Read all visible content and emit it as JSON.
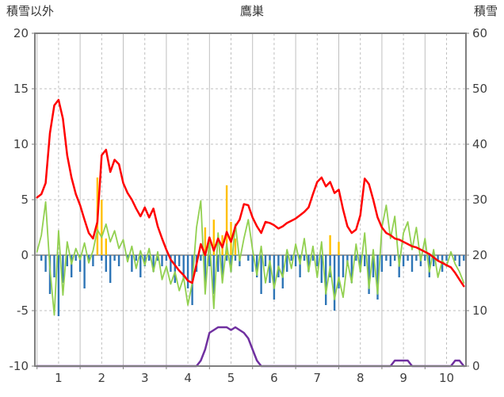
{
  "header": {
    "left_label": "積雪以外",
    "title": "鷹巣",
    "right_label": "積雪"
  },
  "chart_data": {
    "type": "line",
    "title": "鷹巣",
    "left_axis": {
      "label": "積雪以外",
      "min": -10,
      "max": 20,
      "ticks": [
        20,
        15,
        10,
        5,
        0,
        -5,
        -10
      ]
    },
    "right_axis": {
      "label": "積雪",
      "min": 0,
      "max": 60,
      "ticks": [
        60,
        50,
        40,
        30,
        20,
        10,
        0
      ]
    },
    "x_axis": {
      "min": 0.45,
      "max": 10.45,
      "ticks": [
        1,
        2,
        3,
        4,
        5,
        6,
        7,
        8,
        9,
        10
      ]
    },
    "x": {
      "start": 0.5,
      "step": 0.1,
      "count": 100
    },
    "grid": {
      "color": "#BFBFBF",
      "zero_color": "#808080",
      "v_solid": [
        0.5,
        1.5,
        2.5,
        3.5,
        4.5,
        5.5,
        6.5,
        7.5,
        8.5,
        9.5
      ],
      "v_dashed": [
        1,
        2,
        3,
        4,
        5,
        6,
        7,
        8,
        9,
        10
      ],
      "h_dashed": [
        15,
        10,
        5,
        -5
      ]
    },
    "border_color": "#7F7F7F",
    "series": [
      {
        "name": "blue-bars",
        "kind": "bar",
        "axis": "left",
        "color": "#2E75B6",
        "values": [
          0,
          -0.5,
          -1.5,
          -3.5,
          -2,
          -5.5,
          -2.5,
          -1,
          -2,
          -0.5,
          -1.5,
          -3,
          -0.5,
          -1,
          0,
          -0.5,
          -1.5,
          -2.5,
          -0.5,
          -1,
          0,
          -0.5,
          -1.5,
          -0.5,
          -2,
          -1,
          -0.5,
          -1.5,
          -0.5,
          -1,
          -0.5,
          -1.5,
          -2.5,
          -1,
          -2,
          -3,
          -4.5,
          -1.5,
          -0.5,
          -2.5,
          -1,
          -3.5,
          -1.5,
          -2,
          -0.5,
          -1.5,
          -0.5,
          -1,
          0,
          -0.5,
          -1.5,
          -2,
          -3.5,
          -1,
          -2.5,
          -4,
          -2,
          -3,
          -1.5,
          -0.5,
          -1,
          -2,
          -0.5,
          -1.5,
          -0.5,
          -1,
          -2.5,
          -4.5,
          -2,
          -5,
          -3,
          -2,
          -1,
          -2.5,
          -0.5,
          -1.5,
          -1,
          -3.5,
          -2,
          -4,
          -1.5,
          -0.5,
          -1,
          -0.5,
          -2,
          -1,
          -0.5,
          -1.5,
          -0.5,
          -1,
          -0.5,
          -2,
          -1,
          -0.5,
          -1.5,
          -0.5,
          0,
          -0.5,
          -1,
          -0.5
        ]
      },
      {
        "name": "orange-bars",
        "kind": "bar",
        "axis": "left",
        "color": "#FFC000",
        "values": [
          0,
          0,
          0,
          0,
          0,
          0,
          0,
          0,
          0,
          0,
          0,
          0,
          0,
          0,
          7,
          5,
          1.5,
          0,
          0,
          0,
          0,
          0,
          0,
          0,
          0,
          0,
          0,
          0,
          0,
          0,
          0,
          0,
          0,
          0,
          0,
          0,
          0,
          0,
          0,
          2.5,
          0,
          3.2,
          0,
          1.8,
          6.3,
          3,
          1.5,
          0,
          0,
          0,
          0,
          0,
          0,
          0,
          0,
          0,
          0,
          0,
          0,
          0,
          0,
          0,
          0,
          0,
          0,
          0,
          0,
          0,
          1.8,
          0,
          1.2,
          0,
          0,
          0,
          0,
          0,
          0,
          0,
          0,
          0,
          0,
          0,
          0,
          0,
          0,
          0,
          0,
          0,
          0,
          0,
          0,
          0,
          0,
          0,
          0,
          0,
          0,
          0,
          0,
          0
        ]
      },
      {
        "name": "green-line",
        "kind": "line",
        "axis": "left",
        "color": "#92D050",
        "width": 1.8,
        "values": [
          0.3,
          1.8,
          4.8,
          -1.2,
          -5.4,
          2.2,
          -3.6,
          1.2,
          -0.8,
          0.6,
          -0.4,
          1.1,
          -0.7,
          0.4,
          2.3,
          1.6,
          2.8,
          1.2,
          2.2,
          0.6,
          1.4,
          -0.6,
          0.8,
          -1.2,
          0.4,
          -0.9,
          0.6,
          -1.5,
          0.3,
          -2.2,
          -1,
          -2.6,
          -1.5,
          -3.2,
          -2,
          -4.5,
          -2.5,
          2.5,
          4.9,
          -3.5,
          1.5,
          -4.8,
          2,
          -2.5,
          1,
          -1.5,
          2.8,
          -0.5,
          1.5,
          3.2,
          0.5,
          -1.8,
          0.8,
          -2.5,
          -0.5,
          -3,
          -1,
          -2,
          0.5,
          -1.2,
          1,
          -0.8,
          1.5,
          -1.5,
          0.8,
          -2,
          1.2,
          -3.5,
          -1,
          -4,
          -2,
          -3.8,
          -0.5,
          -2.5,
          1,
          -1.5,
          2,
          -3,
          0.5,
          -3.5,
          2.5,
          4.5,
          1.5,
          3.5,
          -1,
          2,
          3,
          0.5,
          2.5,
          -0.5,
          1.5,
          -1.5,
          0.5,
          -2,
          -0.5,
          -1,
          0.3,
          -0.8,
          -1.5,
          -2.5
        ]
      },
      {
        "name": "red-line",
        "kind": "line",
        "axis": "left",
        "color": "#FF0000",
        "width": 2.5,
        "values": [
          5.2,
          5.5,
          6.5,
          11,
          13.5,
          14,
          12.3,
          9,
          7,
          5.5,
          4.5,
          3.2,
          2,
          1.5,
          3,
          9,
          9.5,
          7.5,
          8.6,
          8.2,
          6.5,
          5.6,
          5,
          4.2,
          3.5,
          4.3,
          3.4,
          4.2,
          2.6,
          1.5,
          0.5,
          -0.4,
          -0.9,
          -1.4,
          -1.8,
          -2.3,
          -2.5,
          -0.8,
          1,
          0,
          1.6,
          0.4,
          1.5,
          0.7,
          2.1,
          1.2,
          2.6,
          3.2,
          4.6,
          4.5,
          3.4,
          2.6,
          2,
          3,
          2.9,
          2.7,
          2.4,
          2.6,
          2.9,
          3.1,
          3.3,
          3.6,
          3.9,
          4.3,
          5.5,
          6.6,
          7,
          6.2,
          6.6,
          5.6,
          5.9,
          4.1,
          2.6,
          2,
          2.3,
          3.6,
          6.9,
          6.4,
          5,
          3.4,
          2.5,
          2,
          1.8,
          1.5,
          1.4,
          1.2,
          1,
          0.8,
          0.7,
          0.5,
          0.3,
          0.1,
          -0.2,
          -0.5,
          -0.7,
          -0.9,
          -1.1,
          -1.6,
          -2.2,
          -2.8
        ]
      },
      {
        "name": "purple-line",
        "kind": "line",
        "axis": "right",
        "color": "#7030A0",
        "width": 2.5,
        "values": [
          0,
          0,
          0,
          0,
          0,
          0,
          0,
          0,
          0,
          0,
          0,
          0,
          0,
          0,
          0,
          0,
          0,
          0,
          0,
          0,
          0,
          0,
          0,
          0,
          0,
          0,
          0,
          0,
          0,
          0,
          0,
          0,
          0,
          0,
          0,
          0,
          0,
          0,
          1,
          3,
          6,
          6.5,
          7,
          7,
          7,
          6.5,
          7,
          6.5,
          6,
          5,
          3,
          1,
          0,
          0,
          0,
          0,
          0,
          0,
          0,
          0,
          0,
          0,
          0,
          0,
          0,
          0,
          0,
          0,
          0,
          0,
          0,
          0,
          0,
          0,
          0,
          0,
          0,
          0,
          0,
          0,
          0,
          0,
          0,
          1,
          1,
          1,
          1,
          0,
          0,
          0,
          0,
          0,
          0,
          0,
          0,
          0,
          0,
          1,
          1,
          0
        ]
      }
    ]
  }
}
